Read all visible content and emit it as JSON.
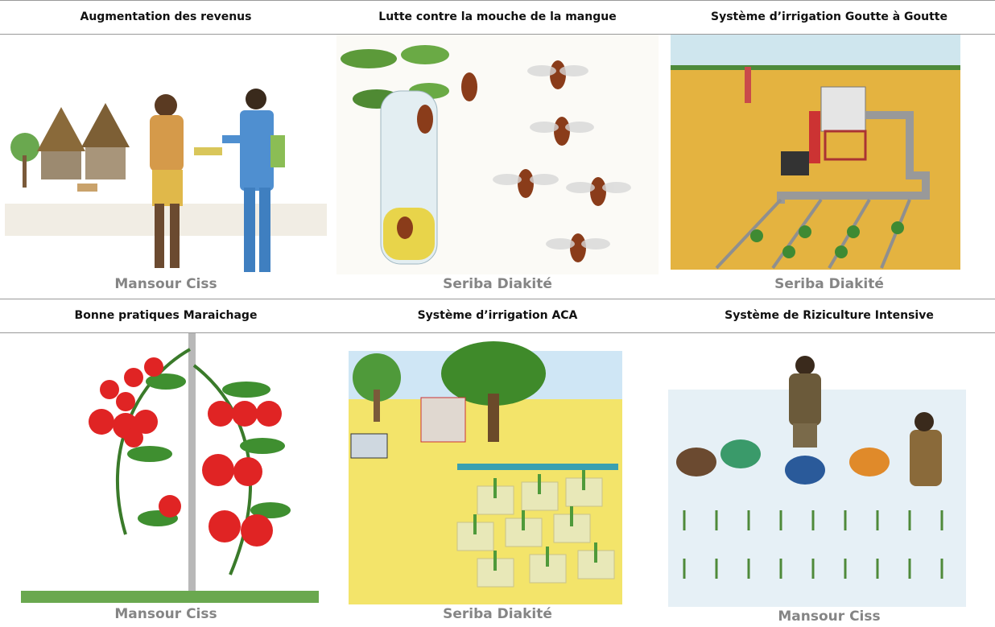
{
  "table": {
    "rows": [
      {
        "cells": [
          {
            "title": "Augmentation des revenus",
            "credit": "Mansour Ciss"
          },
          {
            "title": "Lutte contre la mouche de la mangue",
            "credit": "Seriba Diakité"
          },
          {
            "title": "Système d’irrigation Goutte à Goutte",
            "credit": "Seriba Diakité"
          }
        ]
      },
      {
        "cells": [
          {
            "title": "Bonne pratiques Maraichage",
            "credit": "Mansour Ciss"
          },
          {
            "title": "Système d’irrigation ACA",
            "credit": "Seriba Diakité"
          },
          {
            "title": "Système de Riziculture Intensive",
            "credit": "Mansour Ciss"
          }
        ]
      }
    ]
  }
}
